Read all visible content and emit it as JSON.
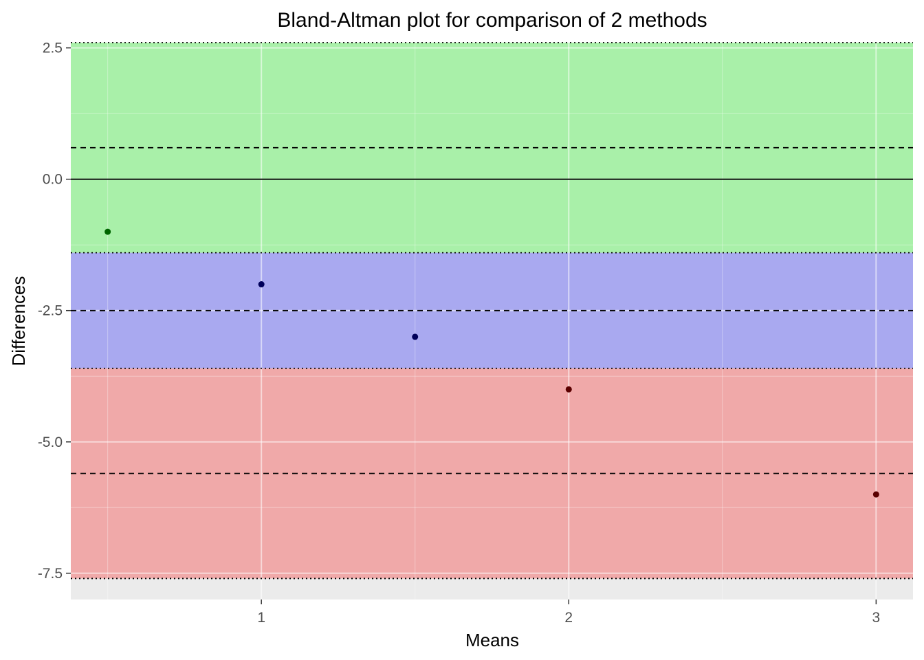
{
  "chart_data": {
    "type": "scatter",
    "title": "Bland-Altman plot for comparison of 2 methods",
    "xlabel": "Means",
    "ylabel": "Differences",
    "xlim": [
      0.38,
      3.12
    ],
    "ylim": [
      -8.0,
      2.6
    ],
    "x_ticks": [
      1,
      2,
      3
    ],
    "x_tick_labels": [
      "1",
      "2",
      "3"
    ],
    "x_minor_ticks": [
      0.5,
      1.5,
      2.5
    ],
    "y_ticks": [
      2.5,
      0.0,
      -2.5,
      -5.0,
      -7.5
    ],
    "y_tick_labels": [
      "2.5",
      "0.0",
      "-2.5",
      "-5.0",
      "-7.5"
    ],
    "y_minor_ticks": [
      1.25,
      -1.25,
      -3.75,
      -6.25
    ],
    "grid": true,
    "panel_background": "#ebebeb",
    "bands": [
      {
        "from": -1.4,
        "to": 2.6,
        "color": "#00ff00",
        "opacity": 0.28
      },
      {
        "from": -3.6,
        "to": -1.4,
        "color": "#0000ff",
        "opacity": 0.28
      },
      {
        "from": -7.6,
        "to": -3.6,
        "color": "#ff0000",
        "opacity": 0.28
      }
    ],
    "reference_lines": [
      {
        "y": 0.0,
        "style": "solid"
      },
      {
        "y": 0.6,
        "style": "dashed"
      },
      {
        "y": -2.5,
        "style": "dashed"
      },
      {
        "y": -5.6,
        "style": "dashed"
      },
      {
        "y": 2.6,
        "style": "dotted"
      },
      {
        "y": -1.4,
        "style": "dotted"
      },
      {
        "y": -3.6,
        "style": "dotted"
      },
      {
        "y": -7.6,
        "style": "dotted"
      }
    ],
    "points": [
      {
        "x": 0.5,
        "y": -1,
        "color": "#006400"
      },
      {
        "x": 1.0,
        "y": -2,
        "color": "#00005a"
      },
      {
        "x": 1.5,
        "y": -3,
        "color": "#00005a"
      },
      {
        "x": 2.0,
        "y": -4,
        "color": "#5a0000"
      },
      {
        "x": 3.0,
        "y": -6,
        "color": "#5a0000"
      }
    ]
  }
}
